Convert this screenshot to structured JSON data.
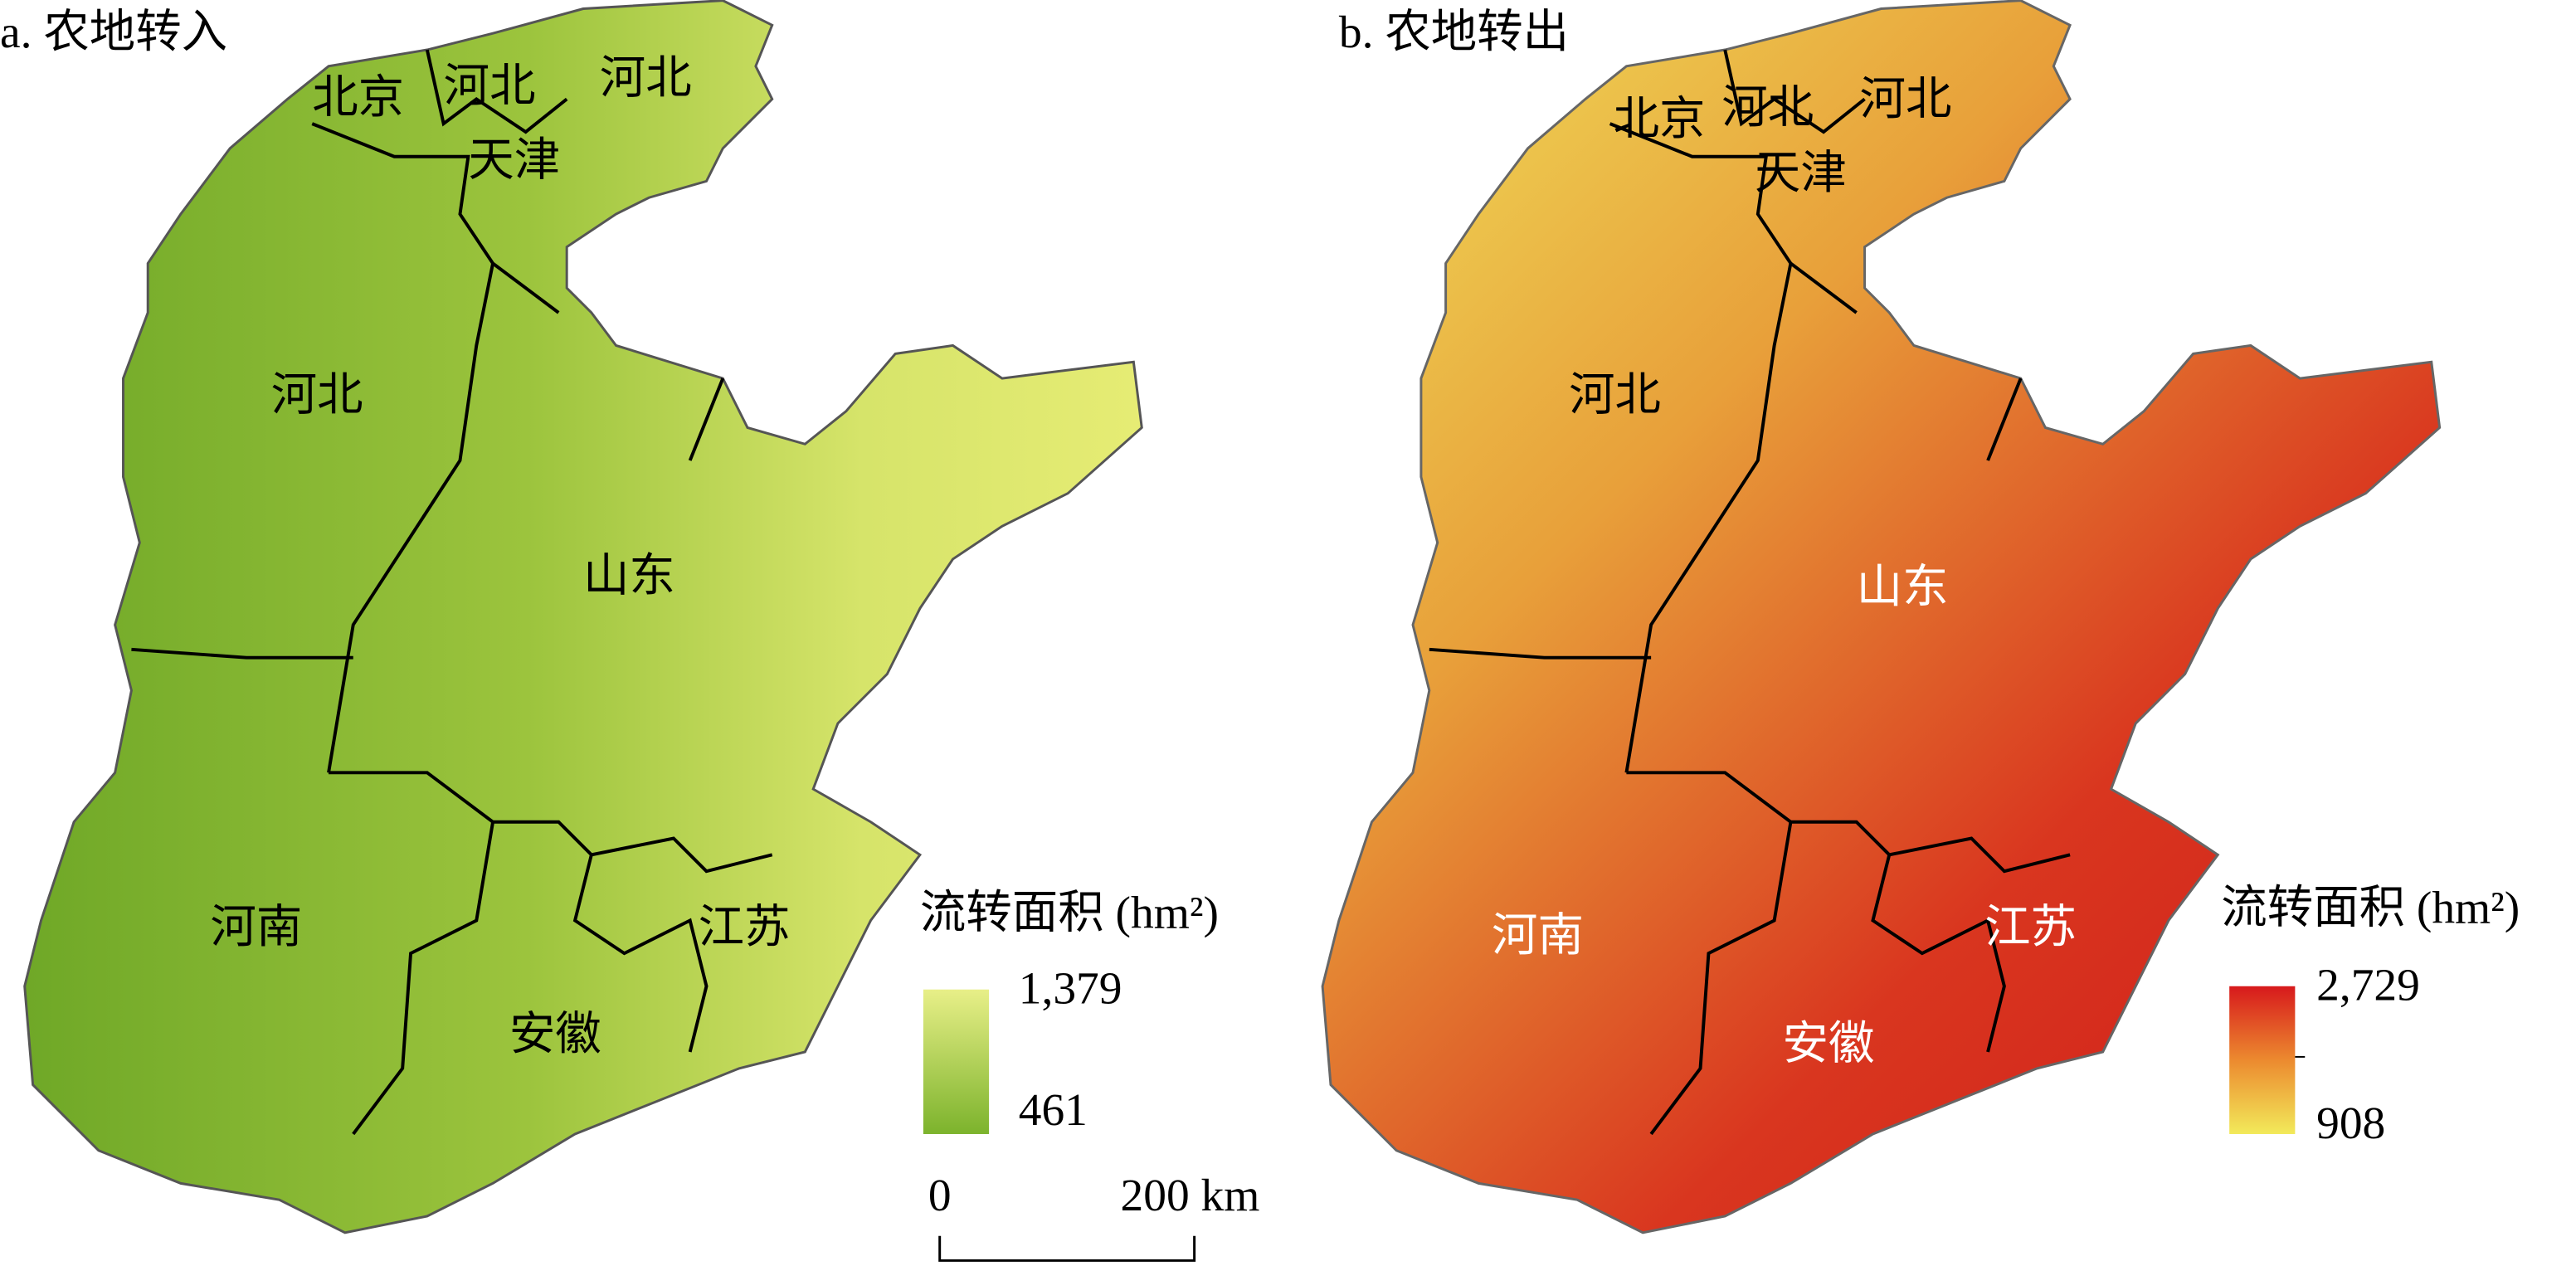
{
  "panels": [
    {
      "title": "a. 农地转入",
      "regions": [
        "北京",
        "河北",
        "河北",
        "天津",
        "河北",
        "山东",
        "河南",
        "江苏",
        "安徽"
      ],
      "legend": {
        "title": "流转面积 (hm²)",
        "max": "1,379",
        "min": "461"
      }
    },
    {
      "title": "b. 农地转出",
      "regions": [
        "北京",
        "河北",
        "河北",
        "天津",
        "河北",
        "山东",
        "河南",
        "江苏",
        "安徽"
      ],
      "legend": {
        "title": "流转面积 (hm²)",
        "max": "2,729",
        "min": "908"
      }
    }
  ],
  "scale_bar": {
    "start": "0",
    "end": "200 km"
  }
}
